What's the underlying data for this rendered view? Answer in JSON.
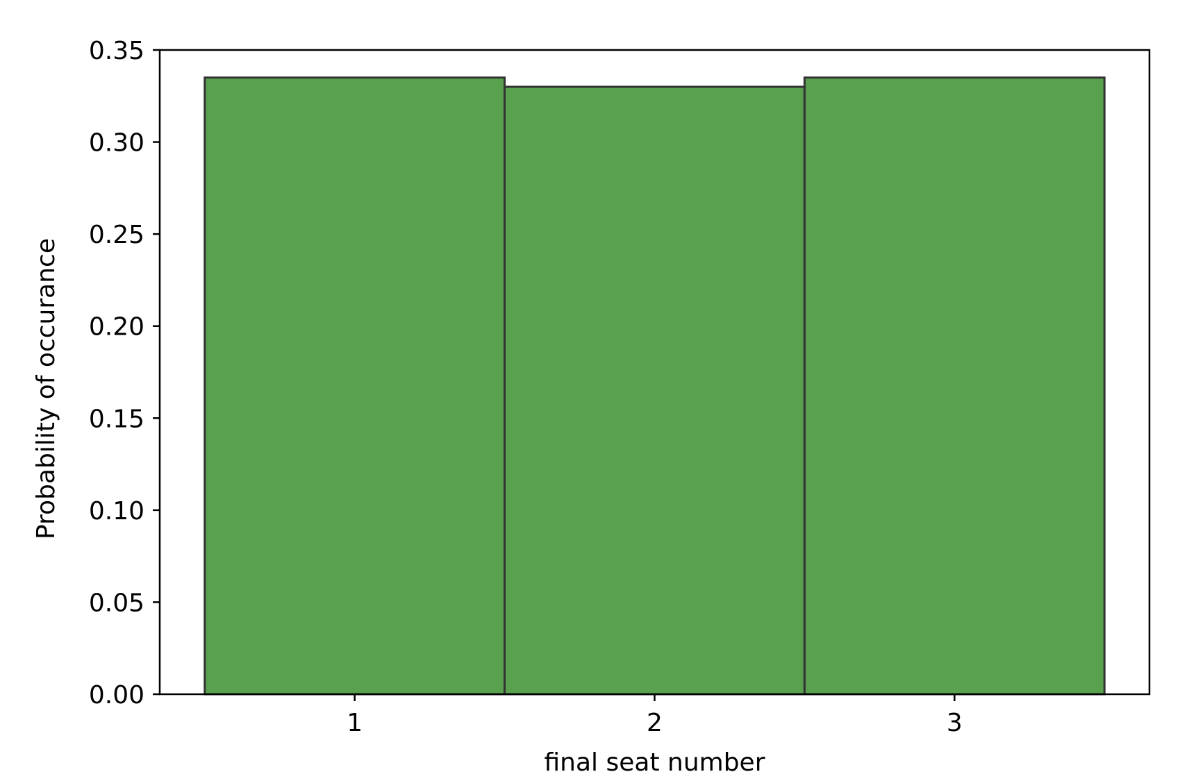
{
  "chart_data": {
    "type": "bar",
    "categories": [
      "1",
      "2",
      "3"
    ],
    "values": [
      0.335,
      0.33,
      0.335
    ],
    "title": "",
    "xlabel": "final seat number",
    "ylabel": "Probability of occurance",
    "xlim": [
      0.35,
      3.65
    ],
    "ylim": [
      0.0,
      0.35
    ],
    "xticks": [
      "1",
      "2",
      "3"
    ],
    "yticks": [
      "0.00",
      "0.05",
      "0.10",
      "0.15",
      "0.20",
      "0.25",
      "0.30",
      "0.35"
    ],
    "grid": false,
    "legend": "none",
    "bar_color": "#59a14f",
    "bar_edge_color": "#333333",
    "bar_width_units": 1.0
  }
}
